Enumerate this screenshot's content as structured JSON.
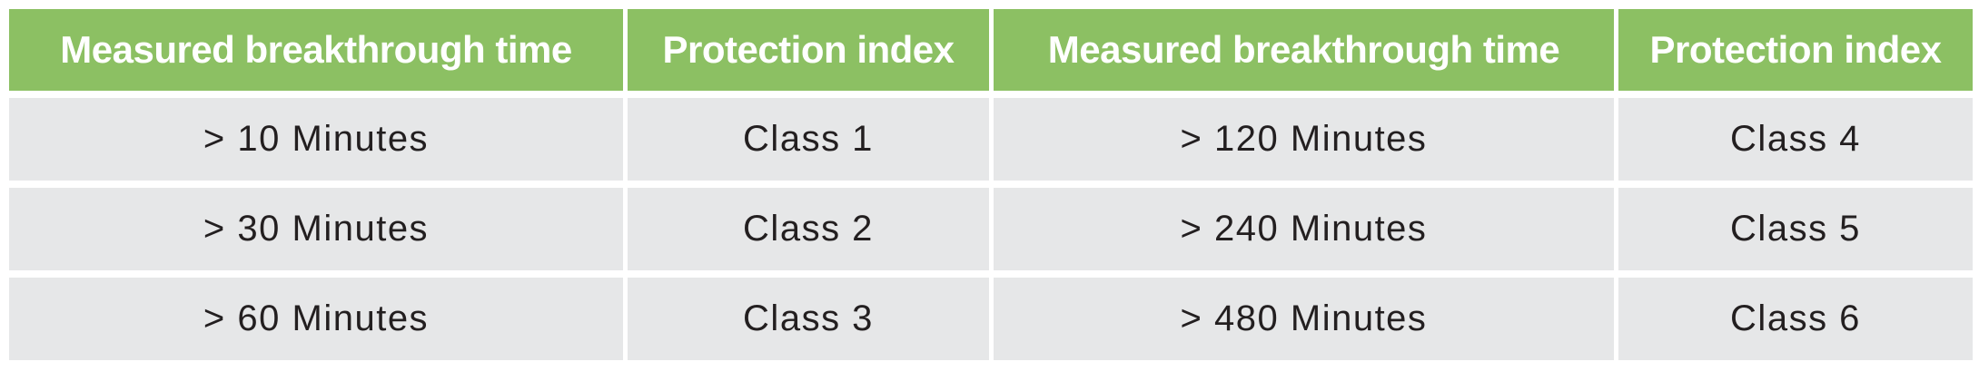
{
  "table": {
    "columns": [
      {
        "label": "Measured breakthrough time"
      },
      {
        "label": "Protection index"
      },
      {
        "label": "Measured breakthrough time"
      },
      {
        "label": "Protection index"
      }
    ],
    "rows": [
      [
        "> 10 Minutes",
        "Class 1",
        "> 120 Minutes",
        "Class 4"
      ],
      [
        "> 30 Minutes",
        "Class 2",
        "> 240 Minutes",
        "Class 5"
      ],
      [
        "> 60 Minutes",
        "Class 3",
        "> 480 Minutes",
        "Class 6"
      ]
    ]
  },
  "colors": {
    "header_bg": "#8CC063",
    "header_text": "#FFFFFF",
    "cell_bg": "#E6E7E8",
    "cell_text": "#231F20",
    "gap": "#FFFFFF"
  }
}
